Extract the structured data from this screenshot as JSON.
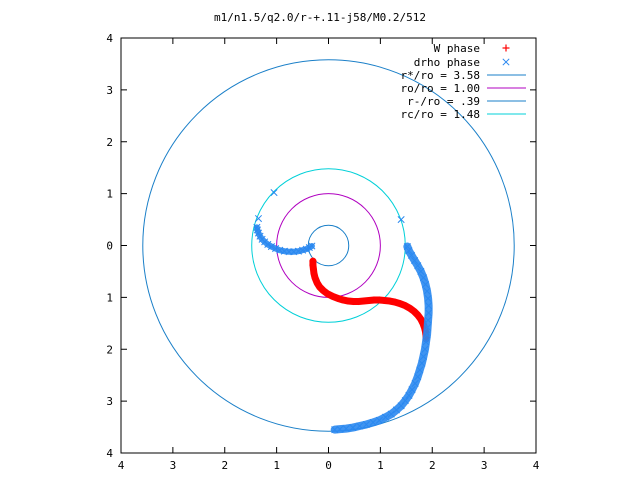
{
  "chart_data": {
    "type": "scatter",
    "title": "m1/n1.5/q2.0/r-+.11-j58/M0.2/512",
    "xlim": [
      -4,
      4
    ],
    "ylim": [
      -4,
      4
    ],
    "x_ticks": [
      -4,
      -3,
      -2,
      -1,
      0,
      1,
      2,
      3,
      4
    ],
    "y_ticks": [
      4,
      3,
      2,
      1,
      0,
      -1,
      -2,
      -3,
      -4
    ],
    "x_tick_labels": [
      "4",
      "3",
      "2",
      "1",
      "0",
      "1",
      "2",
      "3",
      "4"
    ],
    "y_tick_labels": [
      "4",
      "3",
      "2",
      "1",
      "0",
      "1",
      "2",
      "3",
      "4"
    ],
    "grid": false,
    "legend_position": "top-right",
    "colors": {
      "w_phase": "#ff0000",
      "drho_phase": "#2a88f0",
      "r_star": "#1a7fc8",
      "ro": "#b000c0",
      "r_minus": "#1a7fc8",
      "rc": "#00d0d8"
    },
    "series": [
      {
        "name": "W phase",
        "marker": "plus",
        "points": [
          [
            -0.3,
            -0.3
          ],
          [
            -0.3,
            -0.38
          ],
          [
            -0.29,
            -0.46
          ],
          [
            -0.28,
            -0.54
          ],
          [
            -0.26,
            -0.62
          ],
          [
            -0.22,
            -0.72
          ],
          [
            -0.17,
            -0.8
          ],
          [
            -0.1,
            -0.87
          ],
          [
            -0.02,
            -0.93
          ],
          [
            0.08,
            -0.98
          ],
          [
            0.18,
            -1.02
          ],
          [
            0.28,
            -1.05
          ],
          [
            0.38,
            -1.07
          ],
          [
            0.48,
            -1.08
          ],
          [
            0.58,
            -1.08
          ],
          [
            0.68,
            -1.07
          ],
          [
            0.78,
            -1.06
          ],
          [
            0.88,
            -1.05
          ],
          [
            0.98,
            -1.05
          ],
          [
            1.08,
            -1.06
          ],
          [
            1.18,
            -1.07
          ],
          [
            1.28,
            -1.09
          ],
          [
            1.38,
            -1.12
          ],
          [
            1.48,
            -1.16
          ],
          [
            1.57,
            -1.21
          ],
          [
            1.65,
            -1.27
          ],
          [
            1.72,
            -1.34
          ],
          [
            1.78,
            -1.42
          ],
          [
            1.82,
            -1.5
          ],
          [
            1.85,
            -1.58
          ],
          [
            1.87,
            -1.66
          ],
          [
            1.88,
            -1.74
          ],
          [
            1.88,
            -1.8
          ]
        ]
      },
      {
        "name": "drho phase",
        "marker": "cross",
        "points": [
          [
            -1.05,
            1.02
          ],
          [
            -1.35,
            0.52
          ],
          [
            1.4,
            0.5
          ],
          [
            -1.38,
            0.35
          ],
          [
            -1.37,
            0.3
          ],
          [
            -1.35,
            0.24
          ],
          [
            -1.32,
            0.18
          ],
          [
            -1.28,
            0.12
          ],
          [
            -1.23,
            0.07
          ],
          [
            -1.17,
            0.02
          ],
          [
            -1.1,
            -0.02
          ],
          [
            -1.02,
            -0.06
          ],
          [
            -0.94,
            -0.09
          ],
          [
            -0.85,
            -0.11
          ],
          [
            -0.76,
            -0.12
          ],
          [
            -0.67,
            -0.12
          ],
          [
            -0.58,
            -0.11
          ],
          [
            -0.5,
            -0.09
          ],
          [
            -0.43,
            -0.07
          ],
          [
            -0.37,
            -0.04
          ],
          [
            -0.32,
            -0.01
          ],
          [
            1.52,
            -0.02
          ],
          [
            1.55,
            -0.1
          ],
          [
            1.6,
            -0.19
          ],
          [
            1.66,
            -0.29
          ],
          [
            1.72,
            -0.39
          ],
          [
            1.78,
            -0.5
          ],
          [
            1.83,
            -0.62
          ],
          [
            1.87,
            -0.75
          ],
          [
            1.9,
            -0.88
          ],
          [
            1.92,
            -1.02
          ],
          [
            1.93,
            -1.16
          ],
          [
            1.93,
            -1.3
          ],
          [
            1.92,
            -1.44
          ],
          [
            1.91,
            -1.58
          ],
          [
            1.9,
            -1.72
          ],
          [
            1.88,
            -1.86
          ],
          [
            1.86,
            -2.0
          ],
          [
            1.83,
            -2.14
          ],
          [
            1.8,
            -2.27
          ],
          [
            1.76,
            -2.4
          ],
          [
            1.72,
            -2.53
          ],
          [
            1.67,
            -2.66
          ],
          [
            1.61,
            -2.78
          ],
          [
            1.55,
            -2.89
          ],
          [
            1.48,
            -2.99
          ],
          [
            1.4,
            -3.09
          ],
          [
            1.31,
            -3.17
          ],
          [
            1.21,
            -3.25
          ],
          [
            1.1,
            -3.31
          ],
          [
            0.98,
            -3.37
          ],
          [
            0.86,
            -3.41
          ],
          [
            0.73,
            -3.45
          ],
          [
            0.6,
            -3.48
          ],
          [
            0.47,
            -3.51
          ],
          [
            0.34,
            -3.53
          ],
          [
            0.22,
            -3.54
          ],
          [
            0.12,
            -3.55
          ]
        ]
      }
    ],
    "circles": [
      {
        "name": "r*/ro = 3.58",
        "radius": 3.58
      },
      {
        "name": "ro/ro = 1.00",
        "radius": 1.0
      },
      {
        "name": "r-/ro = .39",
        "radius": 0.39
      },
      {
        "name": "rc/ro = 1.48",
        "radius": 1.48
      }
    ]
  }
}
